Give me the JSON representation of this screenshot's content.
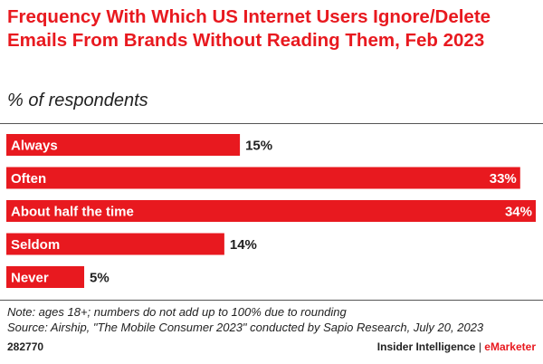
{
  "header": {
    "title": "Frequency With Which US Internet Users Ignore/Delete Emails From Brands Without Reading Them, Feb 2023",
    "subtitle": "% of respondents"
  },
  "chart_data": {
    "type": "bar",
    "orientation": "horizontal",
    "title": "Frequency With Which US Internet Users Ignore/Delete Emails From Brands Without Reading Them, Feb 2023",
    "subtitle": "% of respondents",
    "categories": [
      "Always",
      "Often",
      "About half the time",
      "Seldom",
      "Never"
    ],
    "values": [
      15,
      33,
      34,
      14,
      5
    ],
    "value_labels": [
      "15%",
      "33%",
      "34%",
      "14%",
      "5%"
    ],
    "unit": "%",
    "xlim": [
      0,
      34
    ],
    "grid": false,
    "bar_color": "#e8191f"
  },
  "notes": {
    "note": "Note: ages 18+; numbers do not add up to 100% due to rounding",
    "source": "Source: Airship, \"The Mobile Consumer 2023\" conducted by Sapio Research, July 20, 2023"
  },
  "footer": {
    "chart_id": "282770",
    "brand_main": "Insider Intelligence",
    "separator": "|",
    "brand_accent": "eMarketer"
  },
  "colors": {
    "accent": "#e8191f",
    "text": "#222222",
    "bar_label_inside": "#ffffff"
  }
}
